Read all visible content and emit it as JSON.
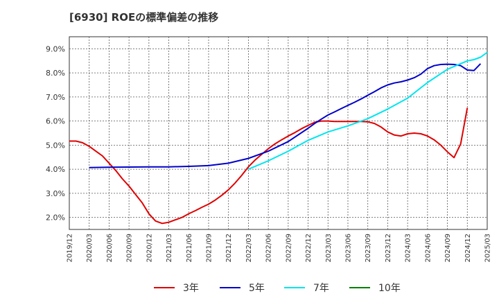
{
  "chart_data": {
    "type": "line",
    "title": "[6930]  ROEの標準偏差の推移",
    "xlabel": "",
    "ylabel": "",
    "ylim": [
      1.5,
      9.5
    ],
    "y_ticks": [
      "2.0%",
      "3.0%",
      "4.0%",
      "5.0%",
      "6.0%",
      "7.0%",
      "8.0%",
      "9.0%"
    ],
    "x_ticks": [
      "2019/12",
      "2020/03",
      "2020/06",
      "2020/09",
      "2020/12",
      "2021/03",
      "2021/06",
      "2021/09",
      "2021/12",
      "2022/03",
      "2022/06",
      "2022/09",
      "2022/12",
      "2023/03",
      "2023/06",
      "2023/09",
      "2023/12",
      "2024/03",
      "2024/06",
      "2024/09",
      "2024/12",
      "2025/03"
    ],
    "grid": true,
    "legend_position": "bottom",
    "series": [
      {
        "name": "3年",
        "color": "#e00000",
        "points": [
          [
            "2019/12",
            5.17
          ],
          [
            "2020/01",
            5.17
          ],
          [
            "2020/02",
            5.1
          ],
          [
            "2020/03",
            4.95
          ],
          [
            "2020/04",
            4.75
          ],
          [
            "2020/05",
            4.55
          ],
          [
            "2020/06",
            4.25
          ],
          [
            "2020/07",
            3.95
          ],
          [
            "2020/08",
            3.6
          ],
          [
            "2020/09",
            3.3
          ],
          [
            "2020/10",
            2.95
          ],
          [
            "2020/11",
            2.6
          ],
          [
            "2020/12",
            2.15
          ],
          [
            "2021/01",
            1.85
          ],
          [
            "2021/02",
            1.75
          ],
          [
            "2021/03",
            1.8
          ],
          [
            "2021/04",
            1.9
          ],
          [
            "2021/05",
            2.0
          ],
          [
            "2021/06",
            2.15
          ],
          [
            "2021/07",
            2.28
          ],
          [
            "2021/08",
            2.42
          ],
          [
            "2021/09",
            2.55
          ],
          [
            "2021/10",
            2.72
          ],
          [
            "2021/11",
            2.92
          ],
          [
            "2021/12",
            3.15
          ],
          [
            "2022/01",
            3.43
          ],
          [
            "2022/02",
            3.75
          ],
          [
            "2022/03",
            4.1
          ],
          [
            "2022/04",
            4.38
          ],
          [
            "2022/05",
            4.62
          ],
          [
            "2022/06",
            4.85
          ],
          [
            "2022/07",
            5.05
          ],
          [
            "2022/08",
            5.22
          ],
          [
            "2022/09",
            5.38
          ],
          [
            "2022/10",
            5.52
          ],
          [
            "2022/11",
            5.68
          ],
          [
            "2022/12",
            5.82
          ],
          [
            "2023/01",
            5.95
          ],
          [
            "2023/02",
            6.0
          ],
          [
            "2023/03",
            6.0
          ],
          [
            "2023/04",
            5.98
          ],
          [
            "2023/05",
            5.98
          ],
          [
            "2023/06",
            5.98
          ],
          [
            "2023/07",
            5.98
          ],
          [
            "2023/08",
            5.98
          ],
          [
            "2023/09",
            5.97
          ],
          [
            "2023/10",
            5.9
          ],
          [
            "2023/11",
            5.75
          ],
          [
            "2023/12",
            5.55
          ],
          [
            "2024/01",
            5.42
          ],
          [
            "2024/02",
            5.38
          ],
          [
            "2024/03",
            5.47
          ],
          [
            "2024/04",
            5.5
          ],
          [
            "2024/05",
            5.47
          ],
          [
            "2024/06",
            5.38
          ],
          [
            "2024/07",
            5.22
          ],
          [
            "2024/08",
            5.0
          ],
          [
            "2024/09",
            4.72
          ],
          [
            "2024/10",
            4.48
          ],
          [
            "2024/11",
            5.05
          ],
          [
            "2024/12",
            6.55
          ]
        ]
      },
      {
        "name": "5年",
        "color": "#0000cc",
        "points": [
          [
            "2020/03",
            4.07
          ],
          [
            "2020/06",
            4.08
          ],
          [
            "2020/09",
            4.09
          ],
          [
            "2020/12",
            4.1
          ],
          [
            "2021/03",
            4.1
          ],
          [
            "2021/06",
            4.12
          ],
          [
            "2021/09",
            4.15
          ],
          [
            "2021/12",
            4.25
          ],
          [
            "2022/03",
            4.45
          ],
          [
            "2022/06",
            4.75
          ],
          [
            "2022/09",
            5.15
          ],
          [
            "2022/12",
            5.7
          ],
          [
            "2023/01",
            5.9
          ],
          [
            "2023/02",
            6.08
          ],
          [
            "2023/03",
            6.25
          ],
          [
            "2023/04",
            6.38
          ],
          [
            "2023/05",
            6.52
          ],
          [
            "2023/06",
            6.65
          ],
          [
            "2023/07",
            6.78
          ],
          [
            "2023/08",
            6.92
          ],
          [
            "2023/09",
            7.07
          ],
          [
            "2023/10",
            7.22
          ],
          [
            "2023/11",
            7.38
          ],
          [
            "2023/12",
            7.5
          ],
          [
            "2024/01",
            7.58
          ],
          [
            "2024/02",
            7.63
          ],
          [
            "2024/03",
            7.7
          ],
          [
            "2024/04",
            7.8
          ],
          [
            "2024/05",
            7.95
          ],
          [
            "2024/06",
            8.18
          ],
          [
            "2024/07",
            8.3
          ],
          [
            "2024/08",
            8.35
          ],
          [
            "2024/09",
            8.36
          ],
          [
            "2024/10",
            8.35
          ],
          [
            "2024/11",
            8.3
          ],
          [
            "2024/12",
            8.12
          ],
          [
            "2025/01",
            8.1
          ],
          [
            "2025/02",
            8.38
          ]
        ]
      },
      {
        "name": "7年",
        "color": "#00e5ee",
        "points": [
          [
            "2022/03",
            4.0
          ],
          [
            "2022/06",
            4.35
          ],
          [
            "2022/09",
            4.75
          ],
          [
            "2022/12",
            5.2
          ],
          [
            "2023/03",
            5.55
          ],
          [
            "2023/06",
            5.8
          ],
          [
            "2023/09",
            6.1
          ],
          [
            "2023/12",
            6.5
          ],
          [
            "2024/03",
            6.95
          ],
          [
            "2024/06",
            7.6
          ],
          [
            "2024/09",
            8.15
          ],
          [
            "2024/12",
            8.5
          ],
          [
            "2025/01",
            8.55
          ],
          [
            "2025/02",
            8.65
          ],
          [
            "2025/03",
            8.85
          ]
        ]
      },
      {
        "name": "10年",
        "color": "#008000",
        "points": []
      }
    ]
  }
}
